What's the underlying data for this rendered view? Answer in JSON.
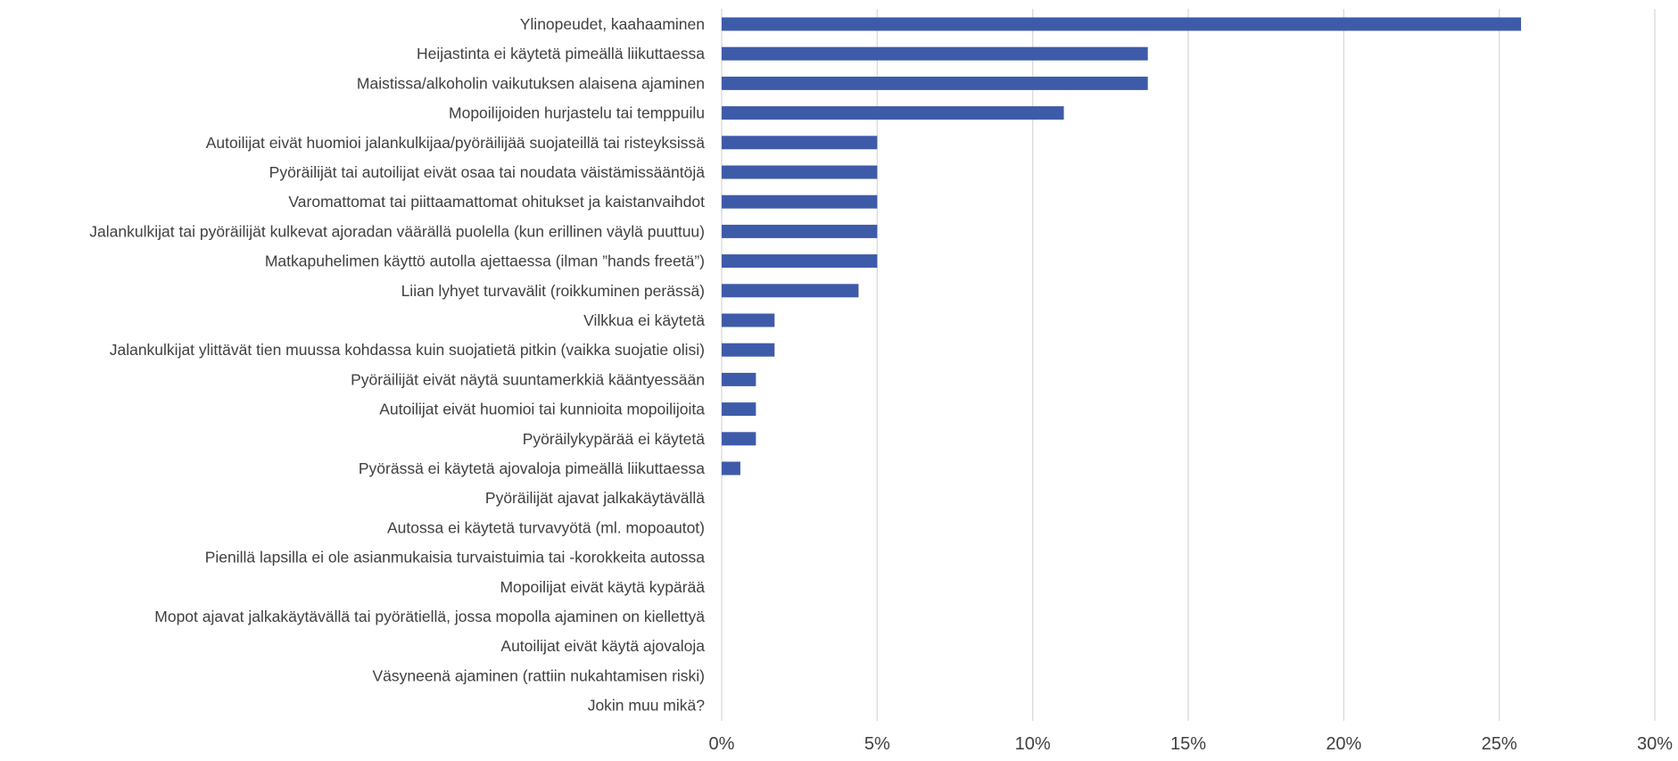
{
  "chart_data": {
    "type": "bar",
    "orientation": "horizontal",
    "title": "",
    "xlabel": "",
    "ylabel": "",
    "xlim": [
      0,
      0.3
    ],
    "x_ticks": [
      0,
      0.05,
      0.1,
      0.15,
      0.2,
      0.25,
      0.3
    ],
    "x_tick_labels": [
      "0%",
      "5%",
      "10%",
      "15%",
      "20%",
      "25%",
      "30%"
    ],
    "grid": "vertical",
    "legend": "none",
    "bar_color": "#3e5ba9",
    "grid_color": "#d9d9d9",
    "text_color": "#404040",
    "categories": [
      "Ylinopeudet, kaahaaminen",
      "Heijastinta ei käytetä pimeällä liikuttaessa",
      "Maistissa/alkoholin vaikutuksen alaisena ajaminen",
      "Mopoilijoiden hurjastelu tai temppuilu",
      "Autoilijat eivät huomioi jalankulkijaa/pyöräilijää suojateillä tai risteyksissä",
      "Pyöräilijät tai autoilijat eivät osaa tai noudata väistämissääntöjä",
      "Varomattomat tai piittaamattomat ohitukset ja kaistanvaihdot",
      "Jalankulkijat tai pyöräilijät kulkevat ajoradan väärällä puolella (kun erillinen väylä puuttuu)",
      "Matkapuhelimen käyttö autolla ajettaessa (ilman ”hands freetä”)",
      "Liian lyhyet turvavälit (roikkuminen perässä)",
      "Vilkkua ei käytetä",
      "Jalankulkijat ylittävät tien muussa kohdassa kuin suojatietä pitkin (vaikka suojatie olisi)",
      "Pyöräilijät eivät näytä suuntamerkkiä kääntyessään",
      "Autoilijat eivät huomioi tai kunnioita mopoilijoita",
      "Pyöräilykypärää ei käytetä",
      "Pyörässä ei käytetä ajovaloja pimeällä liikuttaessa",
      "Pyöräilijät ajavat jalkakäytävällä",
      "Autossa ei käytetä turvavyötä (ml. mopoautot)",
      "Pienillä lapsilla ei ole asianmukaisia turvaistuimia tai -korokkeita autossa",
      "Mopoilijat eivät käytä kypärää",
      "Mopot ajavat jalkakäytävällä tai pyörätiellä, jossa mopolla ajaminen on kiellettyä",
      "Autoilijat eivät käytä ajovaloja",
      "Väsyneenä ajaminen (rattiin nukahtamisen riski)",
      "Jokin muu mikä?"
    ],
    "values": [
      0.257,
      0.137,
      0.137,
      0.11,
      0.05,
      0.05,
      0.05,
      0.05,
      0.05,
      0.044,
      0.017,
      0.017,
      0.011,
      0.011,
      0.011,
      0.006,
      0,
      0,
      0,
      0,
      0,
      0,
      0,
      0
    ]
  }
}
